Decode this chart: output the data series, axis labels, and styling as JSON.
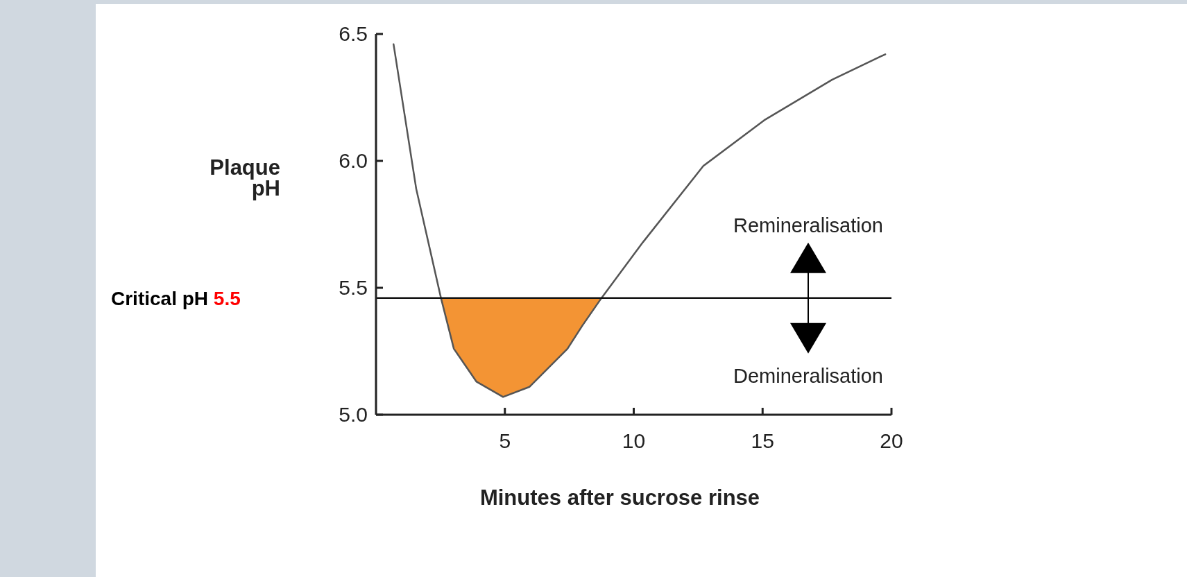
{
  "chart_data": {
    "type": "line",
    "xlabel": "Minutes after sucrose rinse",
    "ylabel": "Plaque\npH",
    "xlim": [
      0,
      20
    ],
    "xticks": [
      5,
      10,
      15,
      20
    ],
    "ylim": [
      5.0,
      6.5
    ],
    "yticks": [
      {
        "value": 5.0,
        "label": "5.0"
      },
      5.5,
      {
        "value": 6.0,
        "label": "6.0"
      },
      6.5
    ],
    "series": [
      {
        "color": "#555555",
        "x": [
          0.68,
          1.56,
          2.52,
          3.02,
          3.9,
          4.93,
          5.96,
          7.43,
          8.0,
          8.75,
          10.36,
          12.7,
          15.06,
          17.7,
          19.76
        ],
        "values": [
          6.46,
          5.89,
          5.46,
          5.26,
          5.13,
          5.07,
          5.11,
          5.26,
          5.35,
          5.46,
          5.68,
          5.98,
          6.16,
          6.32,
          6.42
        ]
      },
      {
        "type": "area",
        "color": "#f39434",
        "x": [
          2.52,
          3.02,
          3.9,
          4.93,
          5.96,
          7.43,
          8.0,
          8.75
        ],
        "values": [
          5.46,
          5.26,
          5.13,
          5.07,
          5.11,
          5.26,
          5.35,
          5.46
        ]
      }
    ],
    "ref_lines": [
      {
        "axis": "y",
        "value": 5.46,
        "label": "Critical pH 5.5",
        "color": "#111111"
      }
    ],
    "annotations": [
      "Remineralisation",
      "Demineralisation"
    ]
  }
}
